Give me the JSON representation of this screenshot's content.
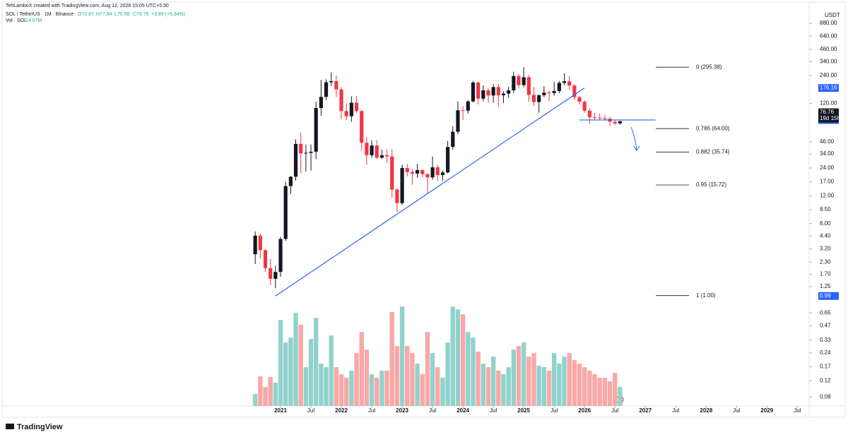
{
  "header": {
    "credit": "TehLamboX created with TradingView.com, Aug 12, 2026 15:05 UTC+5:30",
    "symbol": "SOL / TetherUS · 1M · Binance",
    "ohlc": [
      "O72.87",
      "H77.84",
      "L70.58",
      "C76.76"
    ],
    "change": "+3.89 (+5.34%)",
    "volume_label": "Vol · SOL",
    "volume_value_label": "14.07M"
  },
  "footer": {
    "logo": "TradingView"
  },
  "chart_data": {
    "type": "candlestick",
    "currency": "USDT",
    "log_scale": true,
    "up_color": "#131722",
    "down_color": "#f23645",
    "volume_up_color": "#92d2cc",
    "volume_down_color": "#f7a9a7",
    "x": [
      "2020-08",
      "2020-09",
      "2020-10",
      "2020-11",
      "2020-12",
      "2021-01",
      "2021-02",
      "2021-03",
      "2021-04",
      "2021-05",
      "2021-06",
      "2021-07",
      "2021-08",
      "2021-09",
      "2021-10",
      "2021-11",
      "2021-12",
      "2022-01",
      "2022-02",
      "2022-03",
      "2022-04",
      "2022-05",
      "2022-06",
      "2022-07",
      "2022-08",
      "2022-09",
      "2022-10",
      "2022-11",
      "2022-12",
      "2023-01",
      "2023-02",
      "2023-03",
      "2023-04",
      "2023-05",
      "2023-06",
      "2023-07",
      "2023-08",
      "2023-09",
      "2023-10",
      "2023-11",
      "2023-12",
      "2024-01",
      "2024-02",
      "2024-03",
      "2024-04",
      "2024-05",
      "2024-06",
      "2024-07",
      "2024-08",
      "2024-09",
      "2024-10",
      "2024-11",
      "2024-12",
      "2025-01",
      "2025-02",
      "2025-03",
      "2025-04",
      "2025-05",
      "2025-06",
      "2025-07",
      "2025-08",
      "2025-09",
      "2025-10",
      "2025-11",
      "2025-12",
      "2026-01",
      "2026-02",
      "2026-03",
      "2026-04",
      "2026-05",
      "2026-06",
      "2026-07",
      "2026-08"
    ],
    "open": [
      2.8,
      4.45,
      3.1,
      1.98,
      1.52,
      1.8,
      4.1,
      15.3,
      19.3,
      43.7,
      34.5,
      35,
      36,
      107,
      141,
      203,
      209,
      170,
      99,
      87,
      122,
      99,
      45,
      33,
      42,
      31,
      33,
      32,
      14,
      10,
      24,
      21.7,
      20.9,
      22.8,
      20.6,
      19,
      24.4,
      20.1,
      21.5,
      40.5,
      59.2,
      101,
      100,
      126,
      202,
      135,
      166,
      146,
      180,
      147,
      153,
      166,
      237,
      189,
      230,
      148,
      124,
      147,
      157,
      155,
      163,
      200,
      208,
      187,
      140,
      125,
      100,
      85,
      84,
      83,
      82,
      76,
      72.87
    ],
    "high": [
      4.95,
      4.7,
      3.2,
      2.5,
      2.1,
      4.3,
      17,
      19.6,
      49,
      58,
      43,
      43,
      125,
      216,
      218,
      260,
      240,
      180,
      120,
      143,
      144,
      102,
      52,
      48,
      48,
      38,
      38,
      38,
      14.6,
      26,
      26.5,
      23.5,
      26.6,
      23,
      21,
      32,
      26,
      22.5,
      47,
      68,
      126,
      112,
      130,
      210,
      205,
      188,
      174,
      193,
      195,
      162,
      180,
      264,
      248,
      295.38,
      243,
      180,
      150,
      185,
      165,
      206,
      210,
      253,
      238,
      195,
      145,
      130,
      105,
      95,
      93,
      90,
      86,
      80,
      77.84
    ],
    "low": [
      2.2,
      2.5,
      1.8,
      1.3,
      1.2,
      1.6,
      3.9,
      12.5,
      17.5,
      21,
      22,
      22.5,
      30,
      88,
      131,
      185,
      141,
      81,
      79,
      76,
      94,
      37,
      26,
      31,
      30,
      30,
      27,
      11.5,
      8,
      9.6,
      19.5,
      15.8,
      18.8,
      18.9,
      12.8,
      17.9,
      17.3,
      17.3,
      21,
      38,
      56,
      79,
      93,
      123,
      117,
      126,
      122,
      122,
      110,
      121,
      138,
      155,
      176,
      179,
      125,
      112,
      95,
      140,
      126,
      145,
      155,
      190,
      168,
      130,
      117,
      95,
      72,
      78,
      79,
      78,
      68,
      70,
      70.58
    ],
    "close": [
      4.45,
      3.1,
      1.98,
      1.52,
      1.8,
      4.1,
      15.3,
      19.3,
      43.7,
      34.5,
      35,
      36,
      107,
      141,
      203,
      209,
      170,
      99,
      87,
      122,
      99,
      45,
      33,
      42,
      31,
      33,
      32,
      14,
      10,
      24,
      21.7,
      20.9,
      22.8,
      20.6,
      19,
      24.4,
      20.1,
      21.5,
      40.5,
      59.2,
      101,
      100,
      126,
      202,
      135,
      166,
      146,
      180,
      147,
      153,
      166,
      237,
      189,
      230,
      148,
      124,
      147,
      157,
      155,
      163,
      200,
      208,
      187,
      140,
      125,
      100,
      85,
      84,
      83,
      82,
      76,
      72.87,
      76.76
    ],
    "volume": [
      8.8,
      21.8,
      14.0,
      21.3,
      17.2,
      63.4,
      46.8,
      50.4,
      68.6,
      59.8,
      28.6,
      49.4,
      65,
      31.2,
      28.6,
      52,
      28.6,
      23.4,
      20.8,
      26,
      39,
      54.6,
      41.6,
      23.4,
      20.8,
      26,
      26,
      69.2,
      44.2,
      73.3,
      44.2,
      39,
      31.2,
      23.4,
      54.6,
      39,
      28.6,
      20.8,
      46.8,
      73.3,
      71.2,
      67.6,
      54.6,
      50.4,
      40,
      31.2,
      28.6,
      36.4,
      26,
      23.4,
      28.6,
      41.6,
      44.2,
      46.8,
      36.4,
      39,
      29.6,
      28.6,
      26,
      39,
      31.2,
      36.4,
      39,
      33.8,
      31.2,
      28.6,
      26,
      23.4,
      20.8,
      20.8,
      18.2,
      24.4,
      14.07
    ],
    "volume_lim": [
      0,
      75
    ],
    "ylim": [
      0.064,
      1210
    ],
    "yticks": [
      {
        "value": 880,
        "label": "880.00"
      },
      {
        "value": 640,
        "label": "640.00"
      },
      {
        "value": 460,
        "label": "460.00"
      },
      {
        "value": 340,
        "label": "340.00"
      },
      {
        "value": 240,
        "label": "240.00"
      },
      {
        "value": 120,
        "label": "120.00"
      },
      {
        "value": 46,
        "label": "46.00"
      },
      {
        "value": 34,
        "label": "34.00"
      },
      {
        "value": 24,
        "label": "24.00"
      },
      {
        "value": 17,
        "label": "17.00"
      },
      {
        "value": 12,
        "label": "12.00"
      },
      {
        "value": 8.5,
        "label": "8.50"
      },
      {
        "value": 6,
        "label": "6.00"
      },
      {
        "value": 4.4,
        "label": "4.40"
      },
      {
        "value": 3.2,
        "label": "3.20"
      },
      {
        "value": 2.3,
        "label": "2.30"
      },
      {
        "value": 1.7,
        "label": "1.70"
      },
      1.25,
      0.65,
      0.47,
      0.33,
      0.24,
      0.17,
      0.12,
      0.08
    ],
    "xticks": [
      {
        "value": "2021-01",
        "label": "2021"
      },
      {
        "value": "2021-07",
        "label": "Jul"
      },
      {
        "value": "2022-01",
        "label": "2022"
      },
      {
        "value": "2022-07",
        "label": "Jul"
      },
      {
        "value": "2023-01",
        "label": "2023"
      },
      {
        "value": "2023-07",
        "label": "Jul"
      },
      {
        "value": "2024-01",
        "label": "2024"
      },
      {
        "value": "2024-07",
        "label": "Jul"
      },
      {
        "value": "2025-01",
        "label": "2025"
      },
      {
        "value": "2025-07",
        "label": "Jul"
      },
      {
        "value": "2026-01",
        "label": "2026"
      },
      {
        "value": "2026-07",
        "label": "Jul"
      },
      {
        "value": "2027-01",
        "label": "2027"
      },
      {
        "value": "2027-07",
        "label": "Jul"
      },
      {
        "value": "2028-01",
        "label": "2028"
      },
      {
        "value": "2028-07",
        "label": "Jul"
      },
      {
        "value": "2029-01",
        "label": "2029"
      },
      {
        "value": "2029-07",
        "label": "Jul"
      }
    ],
    "fib_levels": [
      {
        "label": "0 (295.38)",
        "value": 295.38
      },
      {
        "label": "0.786 (64.00)",
        "value": 64
      },
      {
        "label": "0.882 (35.74)",
        "value": 35.74
      },
      {
        "label": "0.95 (15.72)",
        "value": 15.72
      },
      {
        "label": "1 (1.00)",
        "value": 1
      }
    ],
    "trendline": {
      "color": "#2962ff",
      "x": [
        "2020-12",
        "2026-01"
      ],
      "y": [
        0.99,
        176.16
      ]
    },
    "hline": {
      "color": "#2962ff",
      "x": [
        "2025-12",
        "2027-03"
      ],
      "y": 79.32
    },
    "price_markers": [
      {
        "value": 176.16,
        "color": "#2962ff"
      },
      {
        "value": 79.32,
        "color": "#2962ff"
      },
      {
        "value": 76.76,
        "color": "#131722",
        "countdown": "19d 15h"
      },
      {
        "value": 0.99,
        "color": "#2962ff"
      }
    ]
  }
}
